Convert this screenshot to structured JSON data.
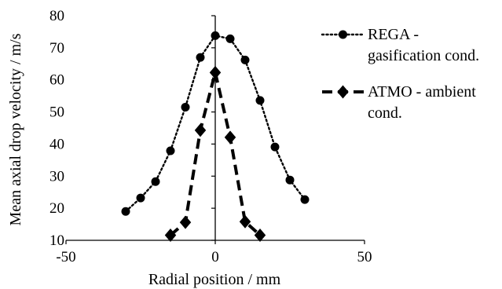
{
  "chart_data": {
    "type": "line",
    "xlabel": "Radial position / mm",
    "ylabel": "Mean axial drop velocity / m/s",
    "xlim": [
      -50,
      50
    ],
    "ylim": [
      10,
      80
    ],
    "x_ticks": [
      "-50",
      "0",
      "50"
    ],
    "y_ticks": [
      "10",
      "20",
      "30",
      "40",
      "50",
      "60",
      "70",
      "80"
    ],
    "grid": false,
    "legend_position": "right",
    "series": [
      {
        "name_lines": [
          "REGA -",
          "gasification cond."
        ],
        "marker": "circle",
        "line_style": "dotted",
        "color": "#000000",
        "points": [
          {
            "x": -30,
            "y": 19
          },
          {
            "x": -25,
            "y": 23.2
          },
          {
            "x": -20,
            "y": 28.3
          },
          {
            "x": -15,
            "y": 37.9
          },
          {
            "x": -10,
            "y": 51.5
          },
          {
            "x": -5,
            "y": 67
          },
          {
            "x": 0,
            "y": 73.8
          },
          {
            "x": 5,
            "y": 72.8
          },
          {
            "x": 10,
            "y": 66.2
          },
          {
            "x": 15,
            "y": 53.6
          },
          {
            "x": 20,
            "y": 39.1
          },
          {
            "x": 25,
            "y": 28.8
          },
          {
            "x": 30,
            "y": 22.7
          }
        ]
      },
      {
        "name_lines": [
          "ATMO - ambient",
          "cond."
        ],
        "marker": "diamond",
        "line_style": "dashed",
        "color": "#000000",
        "points": [
          {
            "x": -15,
            "y": 11.6
          },
          {
            "x": -10,
            "y": 15.6
          },
          {
            "x": -5,
            "y": 44.3
          },
          {
            "x": 0,
            "y": 62.3
          },
          {
            "x": 5,
            "y": 42.1
          },
          {
            "x": 10,
            "y": 15.8
          },
          {
            "x": 15,
            "y": 11.6
          }
        ]
      }
    ]
  }
}
